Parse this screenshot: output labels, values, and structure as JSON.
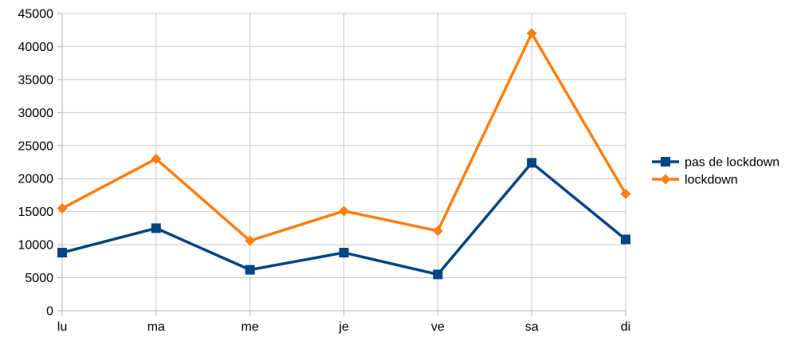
{
  "chart_data": {
    "type": "line",
    "title": "",
    "xlabel": "",
    "ylabel": "",
    "categories": [
      "lu",
      "ma",
      "me",
      "je",
      "ve",
      "sa",
      "di"
    ],
    "ylim": [
      0,
      45000
    ],
    "yticks": [
      0,
      5000,
      10000,
      15000,
      20000,
      25000,
      30000,
      35000,
      40000,
      45000
    ],
    "grid": true,
    "legend": "right",
    "series": [
      {
        "name": "pas de lockdown",
        "color": "#004586",
        "marker": "square",
        "values": [
          8800,
          12500,
          6200,
          8800,
          5500,
          22400,
          10800
        ]
      },
      {
        "name": "lockdown",
        "color": "#ff7f0e",
        "marker": "diamond",
        "values": [
          15500,
          23000,
          10600,
          15100,
          12100,
          42000,
          17700
        ]
      }
    ]
  }
}
